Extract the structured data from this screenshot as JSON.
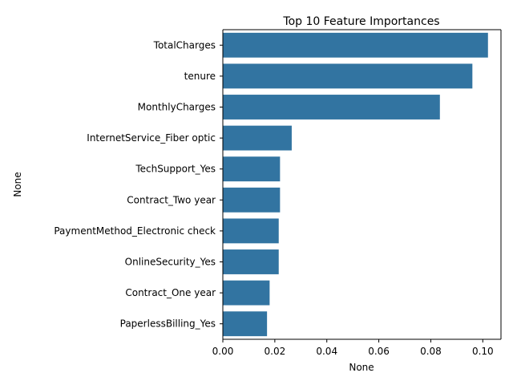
{
  "chart_data": {
    "type": "bar",
    "orientation": "horizontal",
    "title": "Top 10 Feature Importances",
    "xlabel": "None",
    "ylabel": "None",
    "categories": [
      "TotalCharges",
      "tenure",
      "MonthlyCharges",
      "InternetService_Fiber optic",
      "TechSupport_Yes",
      "Contract_Two year",
      "PaymentMethod_Electronic check",
      "OnlineSecurity_Yes",
      "Contract_One year",
      "PaperlessBilling_Yes"
    ],
    "values": [
      0.102,
      0.096,
      0.0835,
      0.0265,
      0.022,
      0.022,
      0.0215,
      0.0215,
      0.018,
      0.017
    ],
    "xlim": [
      0.0,
      0.107
    ],
    "xticks": [
      0.0,
      0.02,
      0.04,
      0.06,
      0.08,
      0.1
    ],
    "xtick_labels": [
      "0.00",
      "0.02",
      "0.04",
      "0.06",
      "0.08",
      "0.10"
    ],
    "grid": false,
    "bar_color": "#3274a1"
  }
}
